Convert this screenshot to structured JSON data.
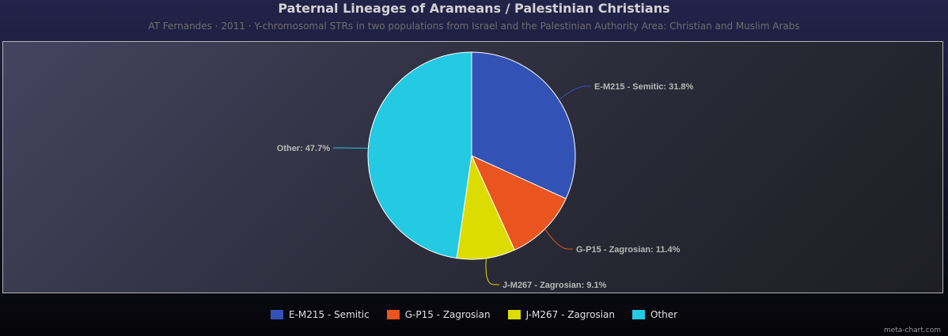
{
  "chart_data": {
    "type": "pie",
    "title": "Paternal Lineages of Arameans / Palestinian Christians",
    "subtitle": "AT Fernandes · 2011 · Y-chromosomal STRs in two populations from Israel and the Palestinian Authority Area: Christian and Muslim Arabs",
    "legend_position": "bottom-center",
    "slices": [
      {
        "name": "E-M215 - Semitic",
        "value": 31.8,
        "color": "#3352b5",
        "label": "E-M215 - Semitic: 31.8%"
      },
      {
        "name": "G-P15 - Zagrosian",
        "value": 11.4,
        "color": "#ea541e",
        "label": "G-P15 - Zagrosian: 11.4%"
      },
      {
        "name": "J-M267 - Zagrosian",
        "value": 9.1,
        "color": "#dcdc00",
        "label": "J-M267 - Zagrosian: 9.1%"
      },
      {
        "name": "Other",
        "value": 47.7,
        "color": "#24c9e2",
        "label": "Other: 47.7%"
      }
    ]
  },
  "credit": "meta-chart.com"
}
